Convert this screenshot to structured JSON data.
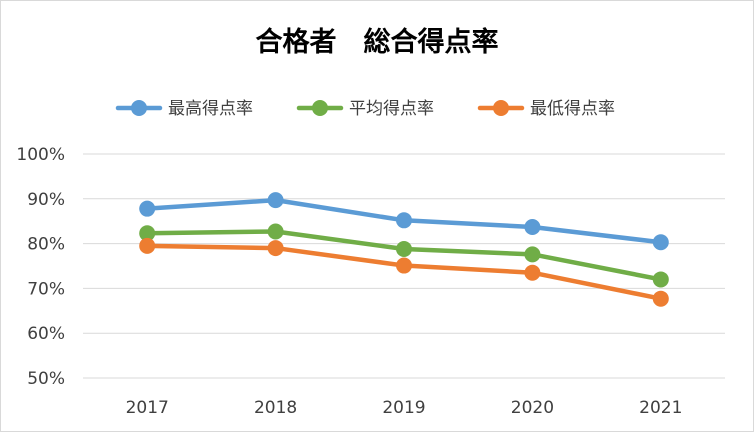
{
  "chart_data": {
    "type": "line",
    "title": "合格者　総合得点率",
    "categories": [
      "2017",
      "2018",
      "2019",
      "2020",
      "2021"
    ],
    "series": [
      {
        "name": "最高得点率",
        "color": "#5b9bd5",
        "values": [
          87.8,
          89.7,
          85.2,
          83.7,
          80.3
        ]
      },
      {
        "name": "平均得点率",
        "color": "#70ad47",
        "values": [
          82.3,
          82.7,
          78.8,
          77.6,
          72.0
        ]
      },
      {
        "name": "最低得点率",
        "color": "#ed7d31",
        "values": [
          79.5,
          79.0,
          75.1,
          73.5,
          67.7
        ]
      }
    ],
    "ylim": [
      50,
      100
    ],
    "yticks": [
      "50%",
      "60%",
      "70%",
      "80%",
      "90%",
      "100%"
    ],
    "grid": true,
    "legend_position": "top"
  }
}
